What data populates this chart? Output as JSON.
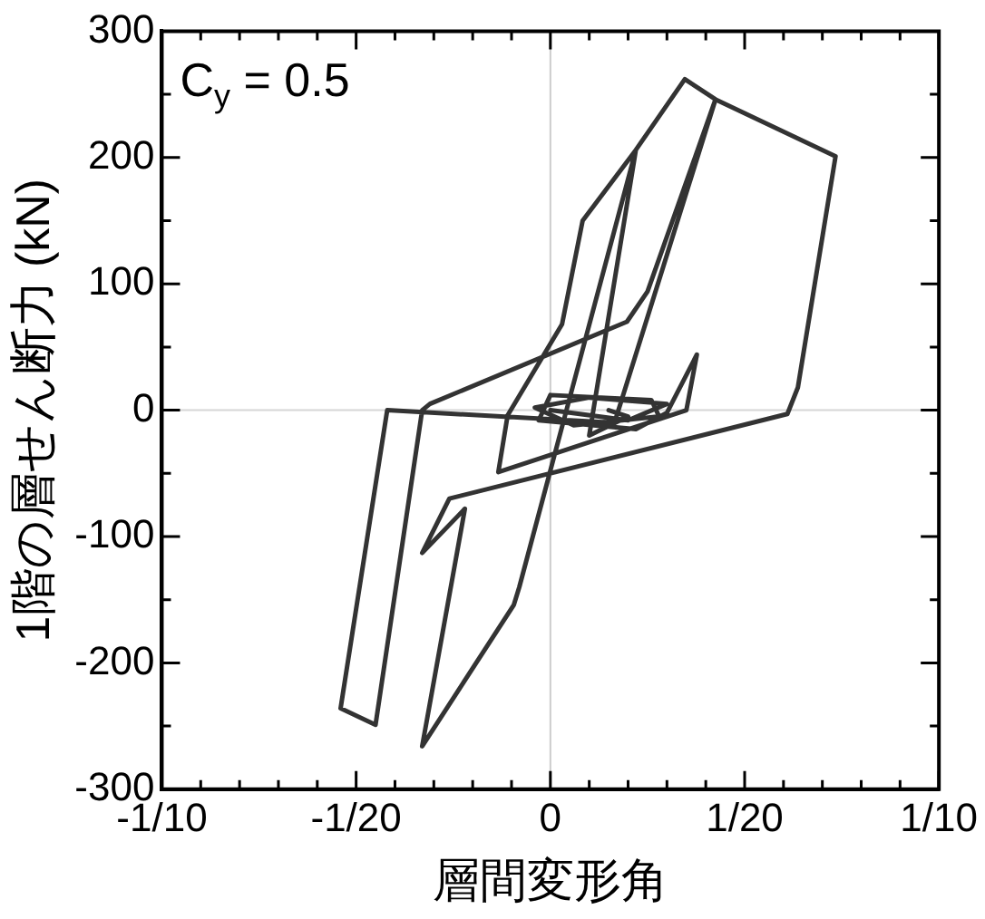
{
  "chart_data": {
    "type": "line",
    "xlabel": "層間変形角",
    "ylabel": "1階の層せん断力 (kN)",
    "annotations": [
      "C$_{y}$ = 0.5"
    ],
    "xlim": [
      -0.1,
      0.1
    ],
    "xticks": [
      {
        "value": -0.1,
        "label": "-1/10"
      },
      {
        "value": -0.09,
        "label": null
      },
      {
        "value": -0.08,
        "label": null
      },
      {
        "value": -0.07,
        "label": null
      },
      {
        "value": -0.06,
        "label": null
      },
      {
        "value": -0.05,
        "label": "-1/20"
      },
      {
        "value": -0.04,
        "label": null
      },
      {
        "value": -0.03,
        "label": null
      },
      {
        "value": -0.02,
        "label": null
      },
      {
        "value": -0.01,
        "label": null
      },
      {
        "value": 0,
        "label": "0"
      },
      {
        "value": 0.01,
        "label": null
      },
      {
        "value": 0.02,
        "label": null
      },
      {
        "value": 0.03,
        "label": null
      },
      {
        "value": 0.04,
        "label": null
      },
      {
        "value": 0.05,
        "label": "1/20"
      },
      {
        "value": 0.06,
        "label": null
      },
      {
        "value": 0.07,
        "label": null
      },
      {
        "value": 0.08,
        "label": null
      },
      {
        "value": 0.09,
        "label": null
      },
      {
        "value": 0.1,
        "label": "1/10"
      }
    ],
    "ylim": [
      -300,
      300
    ],
    "yticks": [
      -300,
      {
        "value": -250,
        "label": null
      },
      -200,
      {
        "value": -150,
        "label": null
      },
      -100,
      {
        "value": -50,
        "label": null
      },
      0,
      {
        "value": 50,
        "label": null
      },
      100,
      {
        "value": 150,
        "label": null
      },
      200,
      {
        "value": 250,
        "label": null
      },
      300
    ],
    "ref_lines": [
      {
        "axis": "x",
        "value": 0,
        "color": "#cccccc"
      },
      {
        "axis": "y",
        "value": 0,
        "color": "#d6d6d6"
      }
    ],
    "grid": false,
    "legend": false,
    "marker": "none",
    "line_style": "solid",
    "series": [
      {
        "color": "#333333",
        "x": [
          0,
          0.02,
          0.03,
          0.01,
          -0.004,
          0.006,
          0.028,
          0.026,
          0,
          -0.003,
          0.022,
          0.03,
          0.0377,
          0.035,
          -0.0134,
          -0.011,
          0.003,
          0.0083,
          0.022,
          0.0346,
          0.0425,
          0.0165,
          -0.042,
          -0.054,
          -0.045,
          -0.033,
          -0.031,
          0.0197,
          0.025,
          0.0425,
          0.0734,
          0.0637,
          0.061,
          -0.026,
          -0.033,
          -0.022,
          -0.033,
          -0.0094,
          -0.008,
          0.022,
          0.01,
          0.02,
          0.015
        ],
        "values": [
          0,
          -8,
          5,
          10,
          2,
          -12,
          -5,
          8,
          12,
          -8,
          -15,
          -2,
          44,
          0,
          -49,
          -4,
          68,
          150,
          206,
          262,
          246,
          -10,
          0,
          -236,
          -249,
          0,
          5,
          70,
          94,
          246,
          201,
          18,
          -3,
          -70,
          -113,
          -78,
          -266,
          -154,
          -140,
          206,
          -20,
          -5,
          0
        ]
      }
    ]
  }
}
